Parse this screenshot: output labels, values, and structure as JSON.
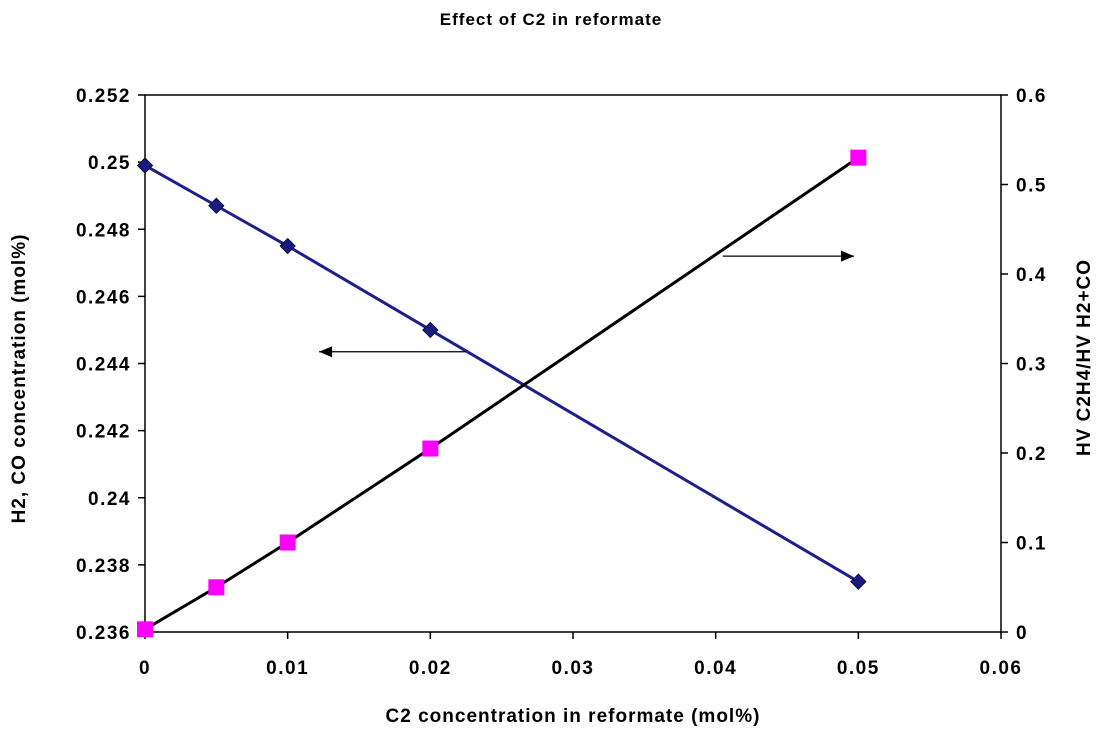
{
  "chart_data": {
    "type": "line",
    "title": "Effect of  C2  in  reformate",
    "xlabel": "C2  concentration  in  reformate  (mol%)",
    "ylabel_left": "H2,  CO concentration (mol%)",
    "ylabel_right": "HV  C2H4/HV  H2+CO",
    "xlim": [
      0,
      0.06
    ],
    "ylim_left": [
      0.236,
      0.252
    ],
    "ylim_right": [
      0,
      0.6
    ],
    "x_ticks": [
      "0",
      "0.01",
      "0.02",
      "0.03",
      "0.04",
      "0.05",
      "0.06"
    ],
    "y_left_ticks": [
      "0.236",
      "0.238",
      "0.24",
      "0.242",
      "0.244",
      "0.246",
      "0.248",
      "0.25",
      "0.252"
    ],
    "y_right_ticks": [
      "0",
      "0.1",
      "0.2",
      "0.3",
      "0.4",
      "0.5",
      "0.6"
    ],
    "grid": false,
    "legend": "none",
    "series": [
      {
        "axis": "left",
        "marker": "diamond",
        "color": "#1a1a80",
        "line_color": "#1f1f8c",
        "x": [
          0,
          0.005,
          0.01,
          0.02,
          0.05
        ],
        "y": [
          0.2499,
          0.2487,
          0.2475,
          0.245,
          0.2375
        ]
      },
      {
        "axis": "right",
        "marker": "square",
        "color": "#ff00ff",
        "line_color": "#000000",
        "x": [
          0,
          0.005,
          0.01,
          0.02,
          0.05
        ],
        "y": [
          0.003,
          0.05,
          0.1,
          0.205,
          0.53
        ]
      }
    ],
    "annotations": [
      {
        "type": "arrow",
        "direction": "left",
        "from": [
          0.0225,
          0.24435
        ],
        "to": [
          0.0122,
          0.24435
        ],
        "axis": "left"
      },
      {
        "type": "arrow",
        "direction": "right",
        "from": [
          0.0405,
          0.42
        ],
        "to": [
          0.0497,
          0.42
        ],
        "axis": "right"
      }
    ]
  }
}
